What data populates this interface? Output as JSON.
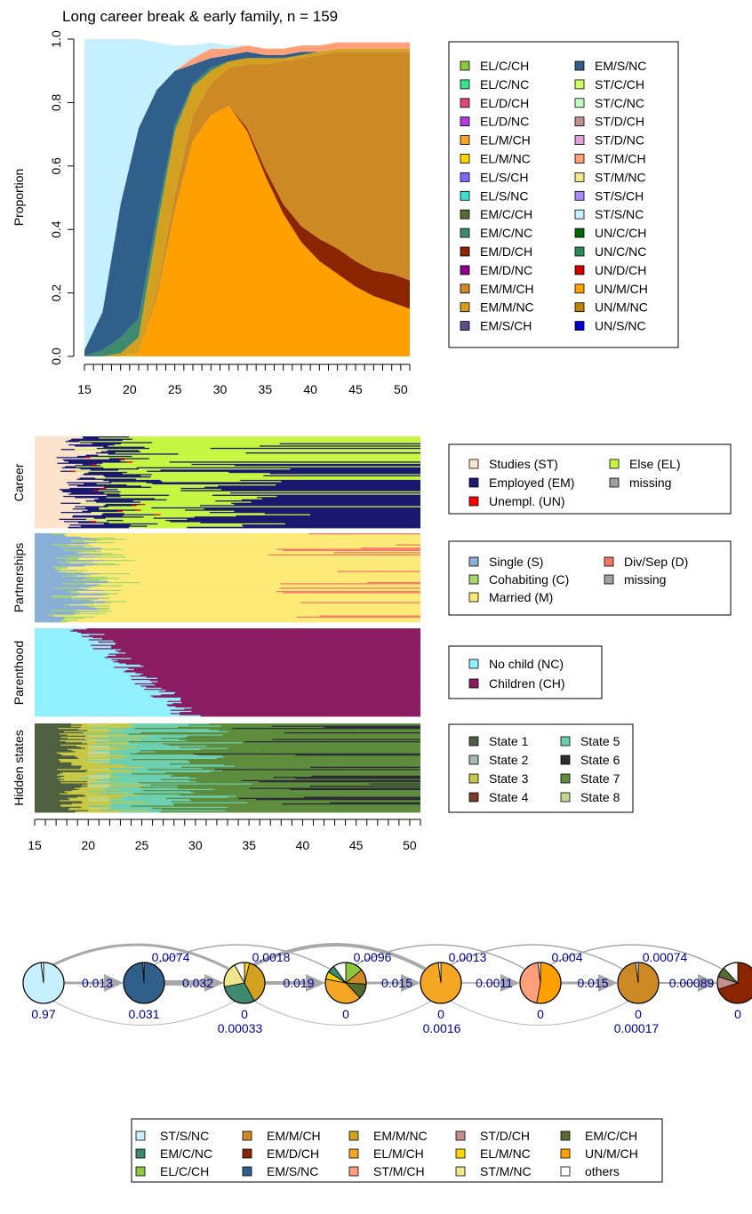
{
  "top_chart": {
    "title": "Long career break & early family, n = 159",
    "ylabel": "Proportion",
    "y_ticks": [
      "0.0",
      "0.2",
      "0.4",
      "0.6",
      "0.8",
      "1.0"
    ],
    "x_ticks": [
      "15",
      "20",
      "25",
      "30",
      "35",
      "40",
      "45",
      "50"
    ]
  },
  "legends": {
    "combined": [
      {
        "label": "EL/C/CH",
        "color": "#8DC63F"
      },
      {
        "label": "EL/C/NC",
        "color": "#3CE18C"
      },
      {
        "label": "EL/D/CH",
        "color": "#E0457B"
      },
      {
        "label": "EL/D/NC",
        "color": "#B03CE0"
      },
      {
        "label": "EL/M/CH",
        "color": "#F5A623"
      },
      {
        "label": "EL/M/NC",
        "color": "#FFD400"
      },
      {
        "label": "EL/S/CH",
        "color": "#7B6EF6"
      },
      {
        "label": "EL/S/NC",
        "color": "#40E0D0"
      },
      {
        "label": "EM/C/CH",
        "color": "#556B2F"
      },
      {
        "label": "EM/C/NC",
        "color": "#3E8A6E"
      },
      {
        "label": "EM/D/CH",
        "color": "#8B2500"
      },
      {
        "label": "EM/D/NC",
        "color": "#8B008B"
      },
      {
        "label": "EM/M/CH",
        "color": "#CD8A24"
      },
      {
        "label": "EM/M/NC",
        "color": "#D4A020"
      },
      {
        "label": "EM/S/CH",
        "color": "#5E4B8B"
      },
      {
        "label": "EM/S/NC",
        "color": "#2F5F8A"
      },
      {
        "label": "ST/C/CH",
        "color": "#CCFF66"
      },
      {
        "label": "ST/C/NC",
        "color": "#C1FFC1"
      },
      {
        "label": "ST/D/CH",
        "color": "#C48E8E"
      },
      {
        "label": "ST/D/NC",
        "color": "#DDA0DD"
      },
      {
        "label": "ST/M/CH",
        "color": "#FFA07A"
      },
      {
        "label": "ST/M/NC",
        "color": "#F0E68C"
      },
      {
        "label": "ST/S/CH",
        "color": "#A78BFA"
      },
      {
        "label": "ST/S/NC",
        "color": "#C6EFFF"
      },
      {
        "label": "UN/C/CH",
        "color": "#006400"
      },
      {
        "label": "UN/C/NC",
        "color": "#2E8B57"
      },
      {
        "label": "UN/D/CH",
        "color": "#D00000"
      },
      {
        "label": "UN/M/CH",
        "color": "#FF9F00"
      },
      {
        "label": "UN/M/NC",
        "color": "#B8860B"
      },
      {
        "label": "UN/S/NC",
        "color": "#0000CD"
      }
    ],
    "career": [
      {
        "label": "Studies (ST)",
        "color": "#FCE4CC"
      },
      {
        "label": "Else (EL)",
        "color": "#C6F542"
      },
      {
        "label": "Employed (EM)",
        "color": "#191970"
      },
      {
        "label": "missing",
        "color": "#A0A0A0"
      },
      {
        "label": "Unempl. (UN)",
        "color": "#FF0000"
      }
    ],
    "partnerships": [
      {
        "label": "Single (S)",
        "color": "#89AFD6"
      },
      {
        "label": "Div/Sep (D)",
        "color": "#F4776A"
      },
      {
        "label": "Cohabiting (C)",
        "color": "#A8D86C"
      },
      {
        "label": "missing",
        "color": "#A0A0A0"
      },
      {
        "label": "Married (M)",
        "color": "#FDEA77"
      }
    ],
    "parenthood": [
      {
        "label": "No child (NC)",
        "color": "#90F0FF"
      },
      {
        "label": "Children (CH)",
        "color": "#8B1C62"
      }
    ],
    "hidden": [
      {
        "label": "State 1",
        "color": "#4F6040"
      },
      {
        "label": "State 5",
        "color": "#6CCFB0"
      },
      {
        "label": "State 2",
        "color": "#A8B8B8"
      },
      {
        "label": "State 6",
        "color": "#2C2C34"
      },
      {
        "label": "State 3",
        "color": "#C8C844"
      },
      {
        "label": "State 7",
        "color": "#5C8C3C"
      },
      {
        "label": "State 4",
        "color": "#7A3A2C"
      },
      {
        "label": "State 8",
        "color": "#C0D890"
      }
    ],
    "pie": [
      {
        "label": "ST/S/NC",
        "color": "#C6EFFF"
      },
      {
        "label": "EM/C/NC",
        "color": "#3E8A6E"
      },
      {
        "label": "EL/C/CH",
        "color": "#8DC63F"
      },
      {
        "label": "EM/M/CH",
        "color": "#CD8A24"
      },
      {
        "label": "EM/D/CH",
        "color": "#8B2500"
      },
      {
        "label": "EM/S/NC",
        "color": "#2F5F8A"
      },
      {
        "label": "EM/M/NC",
        "color": "#D4A020"
      },
      {
        "label": "EL/M/CH",
        "color": "#F5A623"
      },
      {
        "label": "ST/M/CH",
        "color": "#FFA07A"
      },
      {
        "label": "ST/D/CH",
        "color": "#C48E8E"
      },
      {
        "label": "EL/M/NC",
        "color": "#FFD400"
      },
      {
        "label": "ST/M/NC",
        "color": "#F0E68C"
      },
      {
        "label": "EM/C/CH",
        "color": "#556B2F"
      },
      {
        "label": "UN/M/CH",
        "color": "#FF9F00"
      },
      {
        "label": "others",
        "color": "#FFFFFF"
      }
    ]
  },
  "seq_panels": {
    "labels": [
      "Career",
      "Partnerships",
      "Parenthood",
      "Hidden states"
    ],
    "x_ticks": [
      "15",
      "20",
      "25",
      "30",
      "35",
      "40",
      "45",
      "50"
    ]
  },
  "chart_data": [
    {
      "type": "area",
      "title": "Long career break & early family, n = 159",
      "ylabel": "Proportion",
      "xlabel": "",
      "xlim": [
        15,
        51
      ],
      "ylim": [
        0,
        1
      ],
      "x": [
        15,
        17,
        19,
        21,
        23,
        25,
        27,
        29,
        31,
        33,
        35,
        37,
        39,
        41,
        43,
        45,
        47,
        49,
        51
      ],
      "series": [
        {
          "name": "UN/M/CH",
          "values": [
            0,
            0,
            0,
            0.01,
            0.18,
            0.46,
            0.68,
            0.76,
            0.79,
            0.71,
            0.57,
            0.45,
            0.36,
            0.3,
            0.26,
            0.22,
            0.19,
            0.17,
            0.15
          ]
        },
        {
          "name": "EM/D/CH",
          "values": [
            0,
            0,
            0,
            0,
            0,
            0,
            0,
            0,
            0,
            0.01,
            0.02,
            0.03,
            0.05,
            0.07,
            0.08,
            0.08,
            0.08,
            0.09,
            0.09
          ]
        },
        {
          "name": "EM/M/CH",
          "values": [
            0,
            0,
            0,
            0,
            0.02,
            0.05,
            0.08,
            0.1,
            0.12,
            0.2,
            0.33,
            0.45,
            0.53,
            0.58,
            0.62,
            0.66,
            0.69,
            0.7,
            0.72
          ]
        },
        {
          "name": "EM/M/NC",
          "values": [
            0,
            0,
            0.01,
            0.05,
            0.2,
            0.2,
            0.09,
            0.04,
            0.02,
            0.02,
            0.02,
            0.01,
            0.01,
            0.01,
            0.01,
            0.01,
            0.01,
            0.01,
            0.01
          ]
        },
        {
          "name": "EM/C/NC",
          "values": [
            0,
            0.02,
            0.05,
            0.06,
            0.04,
            0.02,
            0.01,
            0.01,
            0,
            0,
            0,
            0,
            0,
            0,
            0,
            0,
            0,
            0,
            0
          ]
        },
        {
          "name": "EM/S/NC",
          "values": [
            0.02,
            0.12,
            0.42,
            0.6,
            0.4,
            0.17,
            0.06,
            0.03,
            0.02,
            0.02,
            0.01,
            0.01,
            0.01,
            0,
            0,
            0,
            0,
            0,
            0
          ]
        },
        {
          "name": "ST/M/CH",
          "values": [
            0,
            0,
            0,
            0,
            0,
            0,
            0.02,
            0.03,
            0.02,
            0.02,
            0.02,
            0.02,
            0.02,
            0.02,
            0.02,
            0.02,
            0.02,
            0.02,
            0.02
          ]
        },
        {
          "name": "ST/S/NC",
          "values": [
            0.98,
            0.86,
            0.52,
            0.28,
            0.15,
            0.08,
            0.04,
            0.02,
            0.01,
            0,
            0,
            0,
            0,
            0,
            0,
            0,
            0,
            0,
            0
          ]
        }
      ]
    },
    {
      "type": "diagram",
      "nodes": [
        {
          "initial_prob": "0.97",
          "slices": [
            {
              "state": "ST/S/NC",
              "value": 0.98
            },
            {
              "state": "others",
              "value": 0.02
            }
          ]
        },
        {
          "initial_prob": "0.031",
          "slices": [
            {
              "state": "EM/S/NC",
              "value": 0.99
            },
            {
              "state": "others",
              "value": 0.01
            }
          ]
        },
        {
          "initial_prob": "0",
          "slices": [
            {
              "state": "EL/M/NC",
              "value": 0.04
            },
            {
              "state": "EM/M/NC",
              "value": 0.38
            },
            {
              "state": "EM/C/NC",
              "value": 0.3
            },
            {
              "state": "ST/M/NC",
              "value": 0.2
            },
            {
              "state": "others",
              "value": 0.08
            }
          ]
        },
        {
          "initial_prob": "0",
          "slices": [
            {
              "state": "EL/C/CH",
              "value": 0.14
            },
            {
              "state": "EM/M/CH",
              "value": 0.12
            },
            {
              "state": "EM/C/CH",
              "value": 0.12
            },
            {
              "state": "EL/M/CH",
              "value": 0.4
            },
            {
              "state": "EL/M/NC",
              "value": 0.06
            },
            {
              "state": "EM/C/NC",
              "value": 0.06
            },
            {
              "state": "others",
              "value": 0.1
            }
          ]
        },
        {
          "initial_prob": "0",
          "slices": [
            {
              "state": "EL/M/CH",
              "value": 0.98
            },
            {
              "state": "others",
              "value": 0.02
            }
          ]
        },
        {
          "initial_prob": "0",
          "slices": [
            {
              "state": "UN/M/CH",
              "value": 0.53
            },
            {
              "state": "ST/M/CH",
              "value": 0.45
            },
            {
              "state": "others",
              "value": 0.02
            }
          ]
        },
        {
          "initial_prob": "0",
          "slices": [
            {
              "state": "EM/M/CH",
              "value": 0.98
            },
            {
              "state": "others",
              "value": 0.02
            }
          ]
        },
        {
          "initial_prob": "0",
          "slices": [
            {
              "state": "EM/D/CH",
              "value": 0.7
            },
            {
              "state": "ST/D/CH",
              "value": 0.1
            },
            {
              "state": "EM/C/CH",
              "value": 0.08
            },
            {
              "state": "others",
              "value": 0.12
            }
          ]
        }
      ],
      "edges_forward": [
        "0.013",
        "0.032",
        "0.019",
        "0.015",
        "0.0011",
        "0.015",
        "0.00089"
      ],
      "edges_skip_upper": [
        "0.0074",
        "0.0018",
        "0.0096",
        "0.0013",
        "0.004",
        "0.00074"
      ],
      "edges_skip_lower": [
        "0.00033",
        "0.0016",
        "0.00017"
      ]
    }
  ]
}
